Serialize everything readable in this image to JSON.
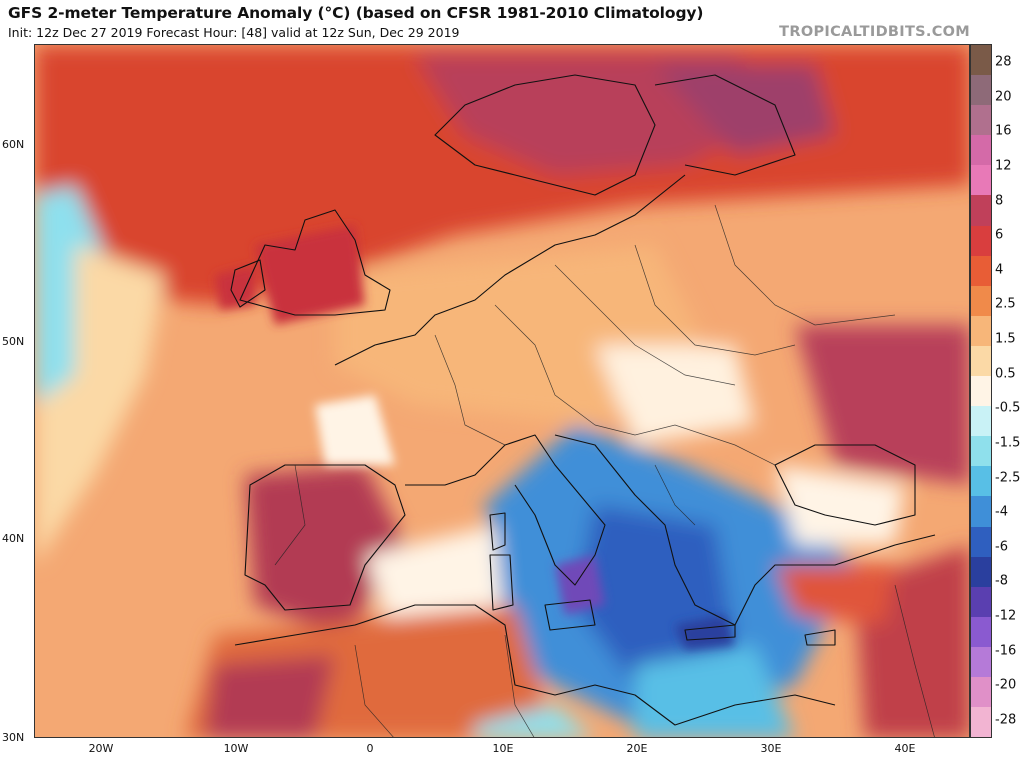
{
  "header": {
    "title": "GFS 2-meter Temperature Anomaly (°C) (based on CFSR 1981-2010 Climatology)",
    "subtitle": "Init: 12z Dec 27 2019   Forecast Hour: [48]   valid at 12z Sun, Dec 29 2019",
    "brand": "TROPICALTIDBITS.COM"
  },
  "axes": {
    "lat_labels": [
      "60N",
      "50N",
      "40N",
      "30N"
    ],
    "lon_labels": [
      "20W",
      "10W",
      "0",
      "10E",
      "20E",
      "30E",
      "40E"
    ]
  },
  "colorbar": {
    "labels": [
      "28",
      "20",
      "16",
      "12",
      "8",
      "6",
      "4",
      "2.5",
      "1.5",
      "0.5",
      "-0.5",
      "-1.5",
      "-2.5",
      "-4",
      "-6",
      "-8",
      "-12",
      "-16",
      "-20",
      "-28"
    ],
    "colors": [
      "#7a5a48",
      "#8e6a78",
      "#b0708e",
      "#d46aa8",
      "#e879b7",
      "#c0405a",
      "#d93e3e",
      "#e85d36",
      "#f08a4a",
      "#f7b679",
      "#fbd9a6",
      "#fff4e6",
      "#c9f2f6",
      "#8fe0ec",
      "#58bfe6",
      "#3f8fd8",
      "#2f5fbf",
      "#2a3f9e",
      "#5a3fb0",
      "#8a5ad0",
      "#b57ad8",
      "#e090c8",
      "#f2b4d2"
    ]
  },
  "map": {
    "features": [
      "ocean-anomaly",
      "land-anomaly",
      "coastlines",
      "country-borders"
    ]
  }
}
